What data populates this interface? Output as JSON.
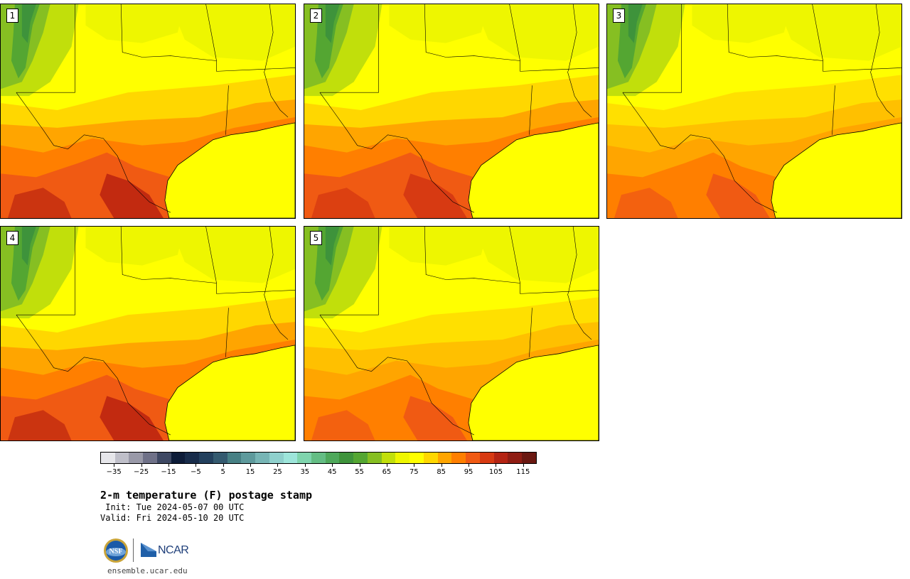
{
  "panels": [
    {
      "label": "1",
      "variant": "hot"
    },
    {
      "label": "2",
      "variant": "warm"
    },
    {
      "label": "3",
      "variant": "mild"
    },
    {
      "label": "4",
      "variant": "hot"
    },
    {
      "label": "5",
      "variant": "mild"
    }
  ],
  "colorbar": {
    "colors": [
      "#e6e6ea",
      "#bfbfc9",
      "#9999a8",
      "#6f7188",
      "#3e4863",
      "#0d1c38",
      "#182c4a",
      "#23405d",
      "#345a6f",
      "#478084",
      "#5e9a9c",
      "#77b5b5",
      "#8fd0cc",
      "#9de5da",
      "#7fd4ad",
      "#64bd84",
      "#4ea85b",
      "#3e933b",
      "#54a632",
      "#86bf22",
      "#c1df0b",
      "#eef600",
      "#ffff00",
      "#ffd700",
      "#ffa500",
      "#ff7f00",
      "#f05a13",
      "#d73a12",
      "#b42413",
      "#8f1d13",
      "#6a1811"
    ],
    "tick_labels": [
      "−35",
      "−25",
      "−15",
      "−5",
      "5",
      "15",
      "25",
      "35",
      "45",
      "55",
      "65",
      "75",
      "85",
      "95",
      "105",
      "115"
    ],
    "tick_values": [
      -35,
      -25,
      -15,
      -5,
      5,
      15,
      25,
      35,
      45,
      55,
      65,
      75,
      85,
      95,
      105,
      115
    ],
    "range": [
      -40,
      120
    ]
  },
  "title": "2-m temperature (F) postage stamp",
  "init": " Init: Tue 2024-05-07 00 UTC",
  "valid": "Valid: Fri 2024-05-10 20 UTC",
  "logos": {
    "nsf": "NSF",
    "ncar": "NCAR"
  },
  "site": "ensemble.ucar.edu"
}
